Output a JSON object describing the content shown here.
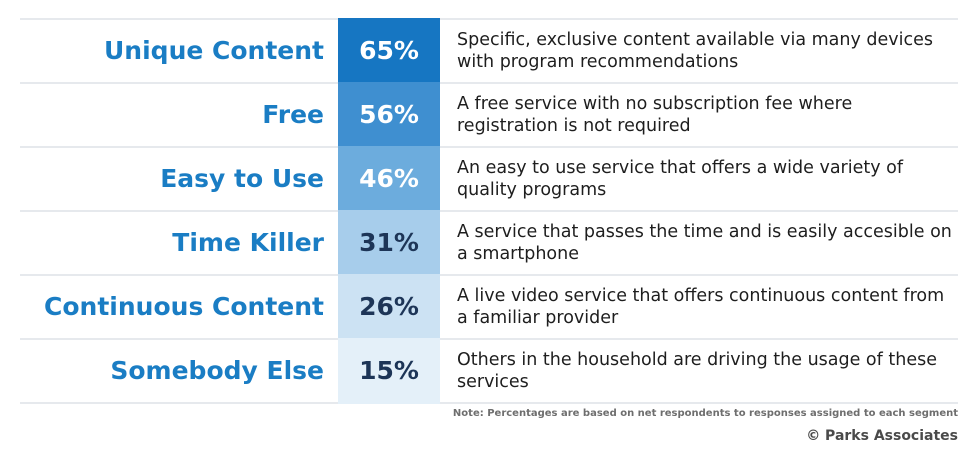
{
  "chart_data": {
    "type": "table",
    "rows": [
      {
        "label": "Unique Content",
        "value": 65,
        "value_text": "65%",
        "description": "Specific, exclusive content available via many devices with program recommendations"
      },
      {
        "label": "Free",
        "value": 56,
        "value_text": "56%",
        "description": "A free service with no subscription fee where registration is not required"
      },
      {
        "label": "Easy to Use",
        "value": 46,
        "value_text": "46%",
        "description": "An easy to use service that offers a wide variety of quality programs"
      },
      {
        "label": "Time Killer",
        "value": 31,
        "value_text": "31%",
        "description": "A service that passes the time and is easily accesible on a smartphone"
      },
      {
        "label": "Continuous Content",
        "value": 26,
        "value_text": "26%",
        "description": "A live video service that offers continuous content from a familiar provider"
      },
      {
        "label": "Somebody Else",
        "value": 15,
        "value_text": "15%",
        "description": "Others in the household are driving the usage of these services"
      }
    ],
    "cell_colors": [
      "#1676c2",
      "#3f8fd0",
      "#6cacdd",
      "#a7cdeb",
      "#cce2f3",
      "#e4f0f9"
    ],
    "text_colors": [
      "#ffffff",
      "#ffffff",
      "#ffffff",
      "#1d3557",
      "#1d3557",
      "#1d3557"
    ]
  },
  "footer": {
    "note": "Note: Percentages are based on net respondents to responses assigned to each segment",
    "copyright": "© Parks Associates"
  }
}
